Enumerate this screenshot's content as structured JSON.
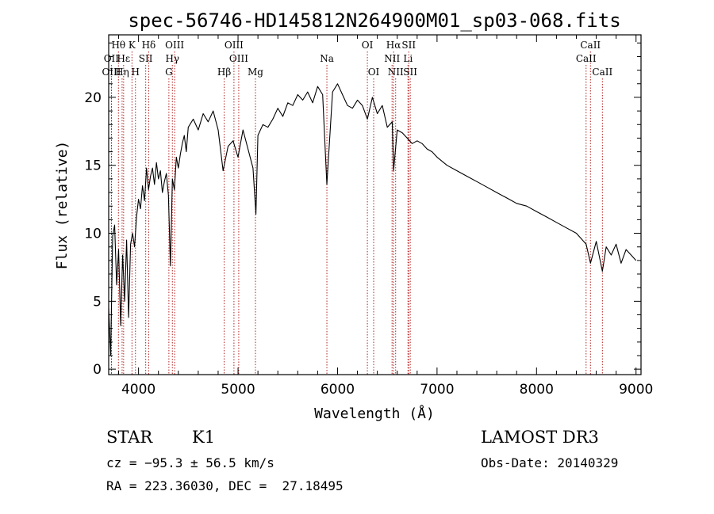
{
  "chart_data": {
    "type": "line",
    "title": "spec-56746-HD145812N264900M01_sp03-068.fits",
    "xlabel": "Wavelength (Å)",
    "ylabel": "Flux (relative)",
    "xlim": [
      3700,
      9050
    ],
    "ylim": [
      -0.4,
      24.6
    ],
    "xticks": [
      4000,
      5000,
      6000,
      7000,
      8000,
      9000
    ],
    "yticks": [
      0,
      5,
      10,
      15,
      20
    ],
    "series": [
      {
        "name": "spectrum",
        "x": [
          3700,
          3720,
          3740,
          3760,
          3780,
          3800,
          3820,
          3840,
          3860,
          3880,
          3900,
          3920,
          3940,
          3960,
          3980,
          4000,
          4020,
          4040,
          4060,
          4080,
          4100,
          4120,
          4140,
          4160,
          4180,
          4200,
          4220,
          4240,
          4260,
          4280,
          4300,
          4320,
          4340,
          4360,
          4380,
          4400,
          4420,
          4440,
          4460,
          4480,
          4500,
          4550,
          4600,
          4650,
          4700,
          4750,
          4800,
          4850,
          4900,
          4950,
          5000,
          5050,
          5100,
          5150,
          5180,
          5200,
          5250,
          5300,
          5350,
          5400,
          5450,
          5500,
          5550,
          5600,
          5650,
          5700,
          5750,
          5800,
          5850,
          5893,
          5950,
          6000,
          6050,
          6100,
          6150,
          6200,
          6250,
          6300,
          6350,
          6400,
          6450,
          6500,
          6550,
          6563,
          6600,
          6650,
          6700,
          6750,
          6800,
          6850,
          6900,
          6950,
          7000,
          7100,
          7200,
          7300,
          7400,
          7500,
          7600,
          7700,
          7800,
          7900,
          8000,
          8100,
          8200,
          8300,
          8400,
          8498,
          8542,
          8600,
          8662,
          8700,
          8750,
          8800,
          8850,
          8900,
          8950,
          9000
        ],
        "y": [
          4.5,
          1.0,
          9.8,
          10.6,
          6.2,
          8.8,
          3.2,
          8.4,
          5.0,
          9.5,
          3.8,
          9.2,
          10.0,
          9.0,
          11.2,
          12.5,
          11.8,
          13.5,
          12.4,
          14.8,
          13.2,
          14.2,
          14.8,
          13.6,
          15.2,
          14.0,
          14.6,
          13.0,
          13.8,
          14.4,
          12.8,
          7.6,
          14.0,
          13.2,
          15.6,
          14.8,
          15.8,
          16.6,
          17.2,
          16.0,
          17.8,
          18.4,
          17.6,
          18.8,
          18.2,
          19.0,
          17.6,
          14.6,
          16.4,
          16.8,
          15.6,
          17.6,
          16.2,
          14.8,
          11.4,
          17.2,
          18.0,
          17.8,
          18.4,
          19.2,
          18.6,
          19.6,
          19.4,
          20.2,
          19.8,
          20.4,
          19.6,
          20.8,
          20.2,
          13.6,
          20.4,
          21.0,
          20.2,
          19.4,
          19.2,
          19.8,
          19.4,
          18.4,
          20.0,
          18.8,
          19.4,
          17.8,
          18.2,
          14.6,
          17.6,
          17.4,
          17.0,
          16.6,
          16.8,
          16.6,
          16.2,
          16.0,
          15.6,
          15.0,
          14.6,
          14.2,
          13.8,
          13.4,
          13.0,
          12.6,
          12.2,
          12.0,
          11.6,
          11.2,
          10.8,
          10.4,
          10.0,
          9.2,
          7.8,
          9.4,
          7.2,
          9.0,
          8.4,
          9.2,
          7.8,
          8.8,
          8.4,
          8.0
        ]
      }
    ],
    "spectral_lines": [
      {
        "label": "Hθ",
        "x": 3798,
        "row": 1
      },
      {
        "label": "OII",
        "x": 3727,
        "row": 2
      },
      {
        "label": "Hε",
        "x": 3850,
        "row": 2
      },
      {
        "label": "OIII",
        "x": 3728,
        "row": 3
      },
      {
        "label": "Hη",
        "x": 3835,
        "row": 3
      },
      {
        "label": "K",
        "x": 3934,
        "row": 1
      },
      {
        "label": "SII",
        "x": 4072,
        "row": 2
      },
      {
        "label": "H",
        "x": 3969,
        "row": 3
      },
      {
        "label": "Hδ",
        "x": 4102,
        "row": 1
      },
      {
        "label": "OIII",
        "x": 4363,
        "row": 1
      },
      {
        "label": "Hγ",
        "x": 4340,
        "row": 2
      },
      {
        "label": "G",
        "x": 4305,
        "row": 3
      },
      {
        "label": "OIII",
        "x": 4959,
        "row": 1
      },
      {
        "label": "OIII",
        "x": 5007,
        "row": 2
      },
      {
        "label": "Hβ",
        "x": 4861,
        "row": 3
      },
      {
        "label": "Mg",
        "x": 5175,
        "row": 3
      },
      {
        "label": "Na",
        "x": 5893,
        "row": 2
      },
      {
        "label": "OI",
        "x": 6300,
        "row": 1
      },
      {
        "label": "OI",
        "x": 6363,
        "row": 3
      },
      {
        "label": "Hα",
        "x": 6563,
        "row": 1
      },
      {
        "label": "SII",
        "x": 6716,
        "row": 1
      },
      {
        "label": "NII",
        "x": 6548,
        "row": 2
      },
      {
        "label": "Li",
        "x": 6708,
        "row": 2
      },
      {
        "label": "NII",
        "x": 6584,
        "row": 3
      },
      {
        "label": "SII",
        "x": 6731,
        "row": 3
      },
      {
        "label": "CaII",
        "x": 8542,
        "row": 1
      },
      {
        "label": "CaII",
        "x": 8498,
        "row": 2
      },
      {
        "label": "CaII",
        "x": 8662,
        "row": 3
      }
    ]
  },
  "info": {
    "class": "STAR",
    "subclass": "K1",
    "survey": "LAMOST DR3",
    "redshift": "cz = −95.3 ± 56.5 km/s",
    "obsdate": "Obs-Date: 20140329",
    "coords": "RA = 223.36030, DEC =  27.18495"
  },
  "colors": {
    "line_marker": "#b22222",
    "spectrum": "#000000",
    "axes": "#000000"
  }
}
